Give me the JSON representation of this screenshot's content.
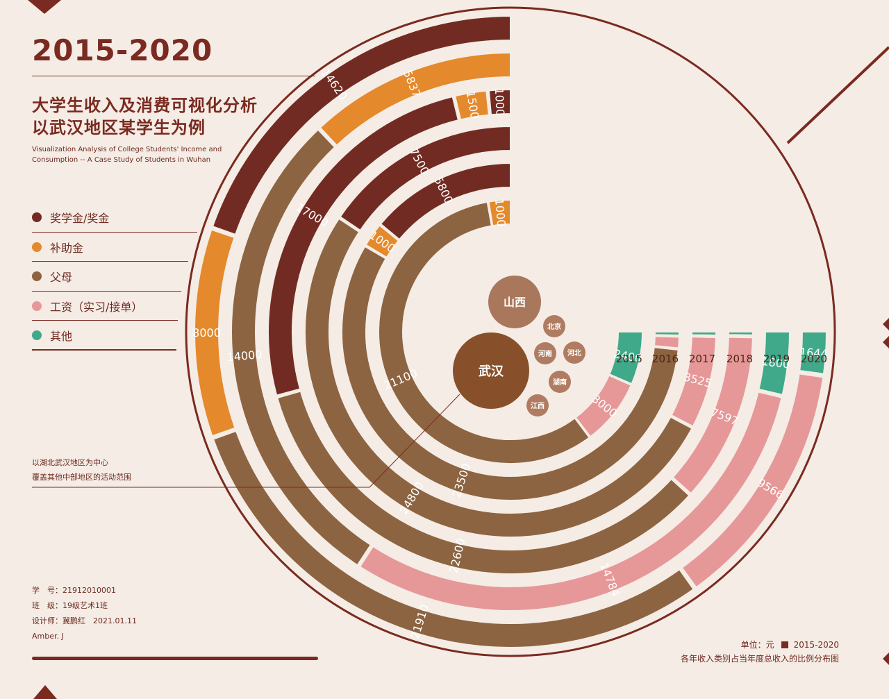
{
  "title": "2015-2020",
  "subtitle_cn_1": "大学生收入及消费可视化分析",
  "subtitle_cn_2": "以武汉地区某学生为例",
  "subtitle_en": "Visualization Analysis of College Students' Income and Consumption -- A Case Study of Students in Wuhan",
  "legend": [
    {
      "label": "奖学金/奖金",
      "color": "#722b22"
    },
    {
      "label": "补助金",
      "color": "#e4892c"
    },
    {
      "label": "父母",
      "color": "#8d6441"
    },
    {
      "label": "工资（实习/接单）",
      "color": "#e59897"
    },
    {
      "label": "其他",
      "color": "#3fa98a"
    }
  ],
  "bubbles": {
    "center": "武汉",
    "others": [
      "山西",
      "北京",
      "河南",
      "河北",
      "湖南",
      "江西"
    ]
  },
  "note": [
    "以湖北武汉地区为中心",
    "覆盖其他中部地区的活动范围"
  ],
  "info": [
    "学　号：21912010001",
    "班　级：19级艺术1班",
    "设计师：冀鹏红　2021.01.11",
    "Amber. J"
  ],
  "unit_label": "单位：元",
  "unit_range": "2015-2020",
  "caption": "各年收入类别占当年度总收入的比例分布图",
  "chart_data": {
    "type": "radial-bar",
    "years": [
      "2015",
      "2016",
      "2017",
      "2018",
      "2019",
      "2020"
    ],
    "categories": [
      "奖学金/奖金",
      "补助金",
      "父母",
      "工资（实习/接单）",
      "其他"
    ],
    "colors": {
      "奖学金/奖金": "#722b22",
      "补助金": "#e4892c",
      "父母": "#8d6441",
      "工资（实习/接单）": "#e59897",
      "其他": "#3fa98a"
    },
    "series": [
      {
        "year": "2015",
        "segments": [
          {
            "category": "其他",
            "value": 2400,
            "label": "2400"
          },
          {
            "category": "工资（实习/接单）",
            "value": 3000,
            "label": "3000"
          },
          {
            "category": "父母",
            "value": 21100,
            "label": "21100"
          },
          {
            "category": "补助金",
            "value": 1000,
            "label": "1000"
          }
        ]
      },
      {
        "year": "2016",
        "segments": [
          {
            "category": "其他",
            "value": 170,
            "label": ""
          },
          {
            "category": "工资（实习/接单）",
            "value": 500,
            "label": ""
          },
          {
            "category": "父母",
            "value": 23500,
            "label": "23500"
          },
          {
            "category": "补助金",
            "value": 1000,
            "label": "1000"
          },
          {
            "category": "奖学金/奖金",
            "value": 5800,
            "label": "5800"
          }
        ]
      },
      {
        "year": "2017",
        "segments": [
          {
            "category": "其他",
            "value": 170,
            "label": ""
          },
          {
            "category": "工资（实习/接单）",
            "value": 3525,
            "label": "3525"
          },
          {
            "category": "父母",
            "value": 24800,
            "label": "24800"
          },
          {
            "category": "奖学金/奖金",
            "value": 7500,
            "label": "7500"
          }
        ]
      },
      {
        "year": "2018",
        "segments": [
          {
            "category": "其他",
            "value": 200,
            "label": ""
          },
          {
            "category": "工资（实习/接单）",
            "value": 7597,
            "label": "7597"
          },
          {
            "category": "父母",
            "value": 22600,
            "label": "22600"
          },
          {
            "category": "奖学金/奖金",
            "value": 17000,
            "label": "17000"
          },
          {
            "category": "补助金",
            "value": 1500,
            "label": "1500"
          },
          {
            "category": "奖学金/奖金",
            "value": 1000,
            "label": "1000"
          }
        ]
      },
      {
        "year": "2019",
        "segments": [
          {
            "category": "其他",
            "value": 1800,
            "label": "1800"
          },
          {
            "category": "工资（实习/接单）",
            "value": 14784,
            "label": "14784"
          },
          {
            "category": "父母",
            "value": 14000,
            "label": "14000"
          },
          {
            "category": "补助金",
            "value": 5837,
            "label": "5837"
          }
        ]
      },
      {
        "year": "2020",
        "segments": [
          {
            "category": "其他",
            "value": 1644,
            "label": "1644"
          },
          {
            "category": "工资（实习/接单）",
            "value": 9566,
            "label": "9566"
          },
          {
            "category": "父母",
            "value": 21910,
            "label": "21910"
          },
          {
            "category": "补助金",
            "value": 8000,
            "label": "8000"
          },
          {
            "category": "奖学金/奖金",
            "value": 14620,
            "label": "14620"
          }
        ]
      }
    ]
  }
}
